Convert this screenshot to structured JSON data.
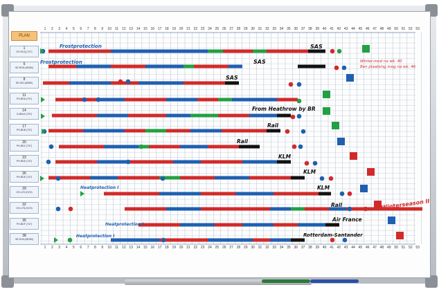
{
  "header": {
    "logo_text": "PLAN"
  },
  "week_numbers": [
    "1",
    "2",
    "3",
    "4",
    "5",
    "6",
    "7",
    "8",
    "9",
    "10",
    "11",
    "12",
    "13",
    "14",
    "15",
    "16",
    "17",
    "18",
    "19",
    "20",
    "21",
    "22",
    "23",
    "24",
    "25",
    "26",
    "27",
    "28",
    "29",
    "30",
    "31",
    "32",
    "33",
    "34",
    "35",
    "36",
    "37",
    "38",
    "39",
    "40",
    "41",
    "42",
    "43",
    "44",
    "45",
    "46",
    "47",
    "48",
    "49",
    "50",
    "51",
    "52",
    "53"
  ],
  "rows": [
    {
      "num": "1",
      "txt": "OH-SUQ (747)"
    },
    {
      "num": "5",
      "txt": "SE-RDN (MD80)"
    },
    {
      "num": "8",
      "txt": "SE-DIN (MD80)"
    },
    {
      "num": "11",
      "txt": "PH-BDA (737)"
    },
    {
      "num": "14",
      "txt": "G-BNLN (757)"
    },
    {
      "num": "17",
      "txt": "PH-BDB (737)"
    },
    {
      "num": "20",
      "txt": "PH-BDC (737)"
    },
    {
      "num": "23",
      "txt": "PH-BDD (747)"
    },
    {
      "num": "26",
      "txt": "PH-BDE (747)"
    },
    {
      "num": "29",
      "txt": "OH-LYK (DC9)"
    },
    {
      "num": "32",
      "txt": "OH-LYN (DC9)"
    },
    {
      "num": "35",
      "txt": "PH-BDF (747)"
    },
    {
      "num": "38",
      "txt": "SE-DOA (MD80)"
    }
  ],
  "notes": {
    "frostprotection_1": "Frostprotection",
    "frostprotection_2": "Frostprotection",
    "sas_1": "SAS",
    "sas_2": "SAS",
    "sas_3": "SAS",
    "winter_note_1": "Winter-mod na wk. 40",
    "winter_note_2": "Ben plaatsing mog na wk. 46",
    "from_heathrow": "From Heathrow by BR",
    "rail_1": "Rail",
    "rail_2": "Rail",
    "rail_3": "Rail",
    "klm_1": "KLM",
    "klm_2": "KLM",
    "klm_3": "KLM",
    "heatprotection_1": "Heatprotection I",
    "heatprotection_2": "Heatprotection I",
    "heatprotection_3": "Heatprotection I",
    "winterseason": "Winterseason II",
    "air_france": "Air France",
    "rotterdam": "Rotterdam-Santander"
  },
  "colors": {
    "red": "#d12a2a",
    "blue": "#1f5fb0",
    "green": "#22a043",
    "black": "#111111",
    "frame": "#b9bec4"
  }
}
